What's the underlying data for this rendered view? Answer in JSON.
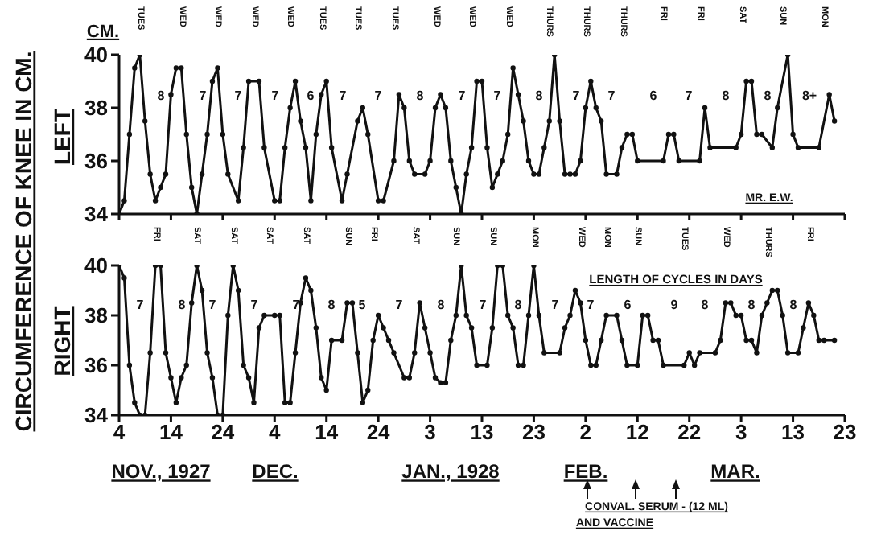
{
  "chart_data": [
    {
      "type": "line",
      "title": "CIRCUMFERENCE OF KNEE IN CM.",
      "ylabel": "LEFT",
      "xlim": [
        "1927-11-04",
        "1928-03-23"
      ],
      "xticks": [
        {
          "value": "1927-11-04",
          "label": null
        },
        {
          "value": "1927-11-14",
          "label": null
        },
        {
          "value": "1927-11-24",
          "label": null
        },
        {
          "value": "1927-12-04",
          "label": null
        },
        {
          "value": "1927-12-14",
          "label": null
        },
        {
          "value": "1927-12-24",
          "label": null
        },
        {
          "value": "1928-01-03",
          "label": null
        },
        {
          "value": "1928-01-13",
          "label": null
        },
        {
          "value": "1928-01-23",
          "label": null
        },
        {
          "value": "1928-02-02",
          "label": null
        },
        {
          "value": "1928-02-12",
          "label": null
        },
        {
          "value": "1928-02-22",
          "label": null
        },
        {
          "value": "1928-03-03",
          "label": null
        },
        {
          "value": "1928-03-13",
          "label": null
        },
        {
          "value": "1928-03-23",
          "label": null
        }
      ],
      "ylim": [
        34,
        40
      ],
      "yticks": [
        34,
        36,
        38,
        40
      ],
      "tick_labels": "y",
      "marker": "circle",
      "line_style": "solid",
      "series": [
        {
          "color": "#111111",
          "x": [
            "1927-11-04",
            "1927-11-05",
            "1927-11-06",
            "1927-11-07",
            "1927-11-08",
            "1927-11-09",
            "1927-11-10",
            "1927-11-11",
            "1927-11-12",
            "1927-11-13",
            "1927-11-14",
            "1927-11-15",
            "1927-11-16",
            "1927-11-17",
            "1927-11-18",
            "1927-11-19",
            "1927-11-20",
            "1927-11-21",
            "1927-11-22",
            "1927-11-23",
            "1927-11-24",
            "1927-11-25",
            "1927-11-27",
            "1927-11-28",
            "1927-11-29",
            "1927-12-01",
            "1927-12-02",
            "1927-12-04",
            "1927-12-05",
            "1927-12-06",
            "1927-12-07",
            "1927-12-08",
            "1927-12-09",
            "1927-12-10",
            "1927-12-11",
            "1927-12-12",
            "1927-12-13",
            "1927-12-14",
            "1927-12-15",
            "1927-12-17",
            "1927-12-18",
            "1927-12-20",
            "1927-12-21",
            "1927-12-22",
            "1927-12-24",
            "1927-12-25",
            "1927-12-27",
            "1927-12-28",
            "1927-12-29",
            "1927-12-30",
            "1927-12-31",
            "1928-01-02",
            "1928-01-03",
            "1928-01-04",
            "1928-01-05",
            "1928-01-06",
            "1928-01-07",
            "1928-01-08",
            "1928-01-09",
            "1928-01-10",
            "1928-01-11",
            "1928-01-12",
            "1928-01-13",
            "1928-01-14",
            "1928-01-15",
            "1928-01-16",
            "1928-01-17",
            "1928-01-18",
            "1928-01-19",
            "1928-01-20",
            "1928-01-21",
            "1928-01-22",
            "1928-01-23",
            "1928-01-24",
            "1928-01-25",
            "1928-01-26",
            "1928-01-27",
            "1928-01-28",
            "1928-01-29",
            "1928-01-30",
            "1928-01-31",
            "1928-02-01",
            "1928-02-02",
            "1928-02-03",
            "1928-02-04",
            "1928-02-05",
            "1928-02-06",
            "1928-02-08",
            "1928-02-09",
            "1928-02-10",
            "1928-02-11",
            "1928-02-12",
            "1928-02-17",
            "1928-02-18",
            "1928-02-19",
            "1928-02-20",
            "1928-02-24",
            "1928-02-25",
            "1928-02-26",
            "1928-03-02",
            "1928-03-03",
            "1928-03-04",
            "1928-03-05",
            "1928-03-06",
            "1928-03-07",
            "1928-03-09",
            "1928-03-10",
            "1928-03-12",
            "1928-03-13",
            "1928-03-14",
            "1928-03-18",
            "1928-03-20",
            "1928-03-21"
          ],
          "values": [
            34,
            34.5,
            37,
            39.5,
            40,
            37.5,
            35.5,
            34.5,
            35,
            35.5,
            38.5,
            39.5,
            39.5,
            37,
            35,
            34,
            35.5,
            37,
            39,
            39.5,
            37,
            35.5,
            34.5,
            36.5,
            39,
            39,
            36.5,
            34.5,
            34.5,
            36.5,
            38,
            39,
            37.5,
            36.5,
            34.5,
            37,
            38.5,
            39,
            36.5,
            34.5,
            35.5,
            37.5,
            38,
            37,
            34.5,
            34.5,
            36,
            38.5,
            38,
            36,
            35.5,
            35.5,
            36,
            38,
            38.5,
            38,
            36,
            35,
            34,
            35.5,
            36.5,
            39,
            39,
            36.5,
            35,
            35.5,
            36,
            37,
            39.5,
            38.5,
            37.5,
            36,
            35.5,
            35.5,
            36.5,
            37.5,
            40,
            37.5,
            35.5,
            35.5,
            35.5,
            36,
            38,
            39,
            38,
            37.5,
            35.5,
            35.5,
            36.5,
            37,
            37,
            36,
            36,
            37,
            37,
            36,
            36,
            38,
            36.5,
            36.5,
            37,
            39,
            39,
            37,
            37,
            36.5,
            38,
            40,
            37,
            36.5,
            36.5,
            38.5,
            37.5
          ]
        }
      ],
      "annotations": [
        "CM.",
        "MR. E.W.",
        "TUES",
        "WED",
        "WED",
        "WED",
        "WED",
        "TUES",
        "TUES",
        "TUES",
        "WED",
        "WED",
        "WED",
        "THURS",
        "THURS",
        "THURS",
        "FRI",
        "FRI",
        "SAT",
        "SUN",
        "MON",
        "8",
        "7",
        "7",
        "7",
        "6",
        "7",
        "7",
        "8",
        "7",
        "7",
        "8",
        "7",
        "7",
        "6",
        "7",
        "8",
        "8",
        "8+"
      ]
    },
    {
      "type": "line",
      "ylabel": "RIGHT",
      "xlim": [
        "1927-11-04",
        "1928-03-23"
      ],
      "xticks": [
        {
          "value": "1927-11-04",
          "label": "4"
        },
        {
          "value": "1927-11-14",
          "label": "14"
        },
        {
          "value": "1927-11-24",
          "label": "24"
        },
        {
          "value": "1927-12-04",
          "label": "4"
        },
        {
          "value": "1927-12-14",
          "label": "14"
        },
        {
          "value": "1927-12-24",
          "label": "24"
        },
        {
          "value": "1928-01-03",
          "label": "3"
        },
        {
          "value": "1928-01-13",
          "label": "13"
        },
        {
          "value": "1928-01-23",
          "label": "23"
        },
        {
          "value": "1928-02-02",
          "label": "2"
        },
        {
          "value": "1928-02-12",
          "label": "12"
        },
        {
          "value": "1928-02-22",
          "label": "22"
        },
        {
          "value": "1928-03-03",
          "label": "3"
        },
        {
          "value": "1928-03-13",
          "label": "13"
        },
        {
          "value": "1928-03-23",
          "label": "23"
        }
      ],
      "ylim": [
        34,
        40
      ],
      "yticks": [
        34,
        36,
        38,
        40
      ],
      "marker": "circle",
      "line_style": "solid",
      "series": [
        {
          "color": "#111111",
          "x": [
            "1927-11-04",
            "1927-11-05",
            "1927-11-06",
            "1927-11-07",
            "1927-11-08",
            "1927-11-09",
            "1927-11-10",
            "1927-11-11",
            "1927-11-12",
            "1927-11-13",
            "1927-11-14",
            "1927-11-15",
            "1927-11-16",
            "1927-11-17",
            "1927-11-18",
            "1927-11-19",
            "1927-11-20",
            "1927-11-21",
            "1927-11-22",
            "1927-11-23",
            "1927-11-24",
            "1927-11-25",
            "1927-11-26",
            "1927-11-27",
            "1927-11-28",
            "1927-11-29",
            "1927-11-30",
            "1927-12-01",
            "1927-12-02",
            "1927-12-04",
            "1927-12-05",
            "1927-12-06",
            "1927-12-07",
            "1927-12-08",
            "1927-12-09",
            "1927-12-10",
            "1927-12-11",
            "1927-12-12",
            "1927-12-13",
            "1927-12-14",
            "1927-12-15",
            "1927-12-17",
            "1927-12-18",
            "1927-12-19",
            "1927-12-20",
            "1927-12-21",
            "1927-12-22",
            "1927-12-23",
            "1927-12-24",
            "1927-12-25",
            "1927-12-26",
            "1927-12-27",
            "1927-12-29",
            "1927-12-30",
            "1927-12-31",
            "1928-01-01",
            "1928-01-02",
            "1928-01-03",
            "1928-01-04",
            "1928-01-05",
            "1928-01-06",
            "1928-01-07",
            "1928-01-08",
            "1928-01-09",
            "1928-01-10",
            "1928-01-11",
            "1928-01-12",
            "1928-01-14",
            "1928-01-15",
            "1928-01-16",
            "1928-01-17",
            "1928-01-18",
            "1928-01-19",
            "1928-01-20",
            "1928-01-21",
            "1928-01-22",
            "1928-01-23",
            "1928-01-24",
            "1928-01-25",
            "1928-01-28",
            "1928-01-29",
            "1928-01-30",
            "1928-01-31",
            "1928-02-01",
            "1928-02-02",
            "1928-02-03",
            "1928-02-04",
            "1928-02-05",
            "1928-02-06",
            "1928-02-08",
            "1928-02-09",
            "1928-02-10",
            "1928-02-12",
            "1928-02-13",
            "1928-02-14",
            "1928-02-15",
            "1928-02-16",
            "1928-02-17",
            "1928-02-21",
            "1928-02-22",
            "1928-02-23",
            "1928-02-24",
            "1928-02-27",
            "1928-02-28",
            "1928-02-29",
            "1928-03-01",
            "1928-03-02",
            "1928-03-03",
            "1928-03-04",
            "1928-03-05",
            "1928-03-06",
            "1928-03-07",
            "1928-03-08",
            "1928-03-09",
            "1928-03-10",
            "1928-03-11",
            "1928-03-12",
            "1928-03-14",
            "1928-03-15",
            "1928-03-16",
            "1928-03-17",
            "1928-03-18",
            "1928-03-19",
            "1928-03-21"
          ],
          "values": [
            40,
            39.5,
            36,
            34.5,
            34,
            34,
            36.5,
            40,
            40,
            36.5,
            35.5,
            34.5,
            35.5,
            36,
            38.5,
            40,
            39,
            36.5,
            35.5,
            34,
            34,
            38,
            40,
            39,
            36,
            35.5,
            34.5,
            37.5,
            38,
            38,
            38,
            34.5,
            34.5,
            36.5,
            38.5,
            39.5,
            39,
            37.5,
            35.5,
            35,
            37,
            37,
            38.5,
            38.5,
            36.5,
            34.5,
            35,
            37,
            38,
            37.5,
            37,
            36.5,
            35.5,
            35.5,
            36.5,
            38.5,
            37.5,
            36.5,
            35.5,
            35.3,
            35.3,
            37,
            38,
            40,
            38,
            37.5,
            36,
            36,
            37.5,
            40,
            40,
            38,
            37.5,
            36,
            36,
            38,
            40,
            38,
            36.5,
            36.5,
            37.5,
            38,
            39,
            38.5,
            37,
            36,
            36,
            37,
            38,
            38,
            37,
            36,
            36,
            38,
            38,
            37,
            37,
            36,
            36,
            36.5,
            36,
            36.5,
            36.5,
            37,
            38.5,
            38.5,
            38,
            38,
            37,
            37,
            36.5,
            38,
            38.5,
            39,
            39,
            38,
            36.5,
            36.5,
            37.5,
            38.5,
            38,
            37,
            37,
            37
          ]
        }
      ],
      "annotations": [
        "LENGTH OF CYCLES IN DAYS",
        "CONVAL. SERUM - (12 ML)",
        "AND VACCINE",
        "NOV., 1927",
        "DEC.",
        "JAN., 1928",
        "FEB.",
        "MAR.",
        "FRI",
        "SAT",
        "SAT",
        "SAT",
        "SAT",
        "SUN",
        "FRI",
        "SAT",
        "SUN",
        "SUN",
        "MON",
        "WED",
        "MON",
        "SUN",
        "TUES",
        "WED",
        "THURS",
        "FRI",
        "7",
        "8",
        "7",
        "7",
        "7",
        "8",
        "5",
        "7",
        "8",
        "7",
        "8",
        "7",
        "7",
        "6",
        "9",
        "8",
        "8",
        "8"
      ]
    }
  ]
}
